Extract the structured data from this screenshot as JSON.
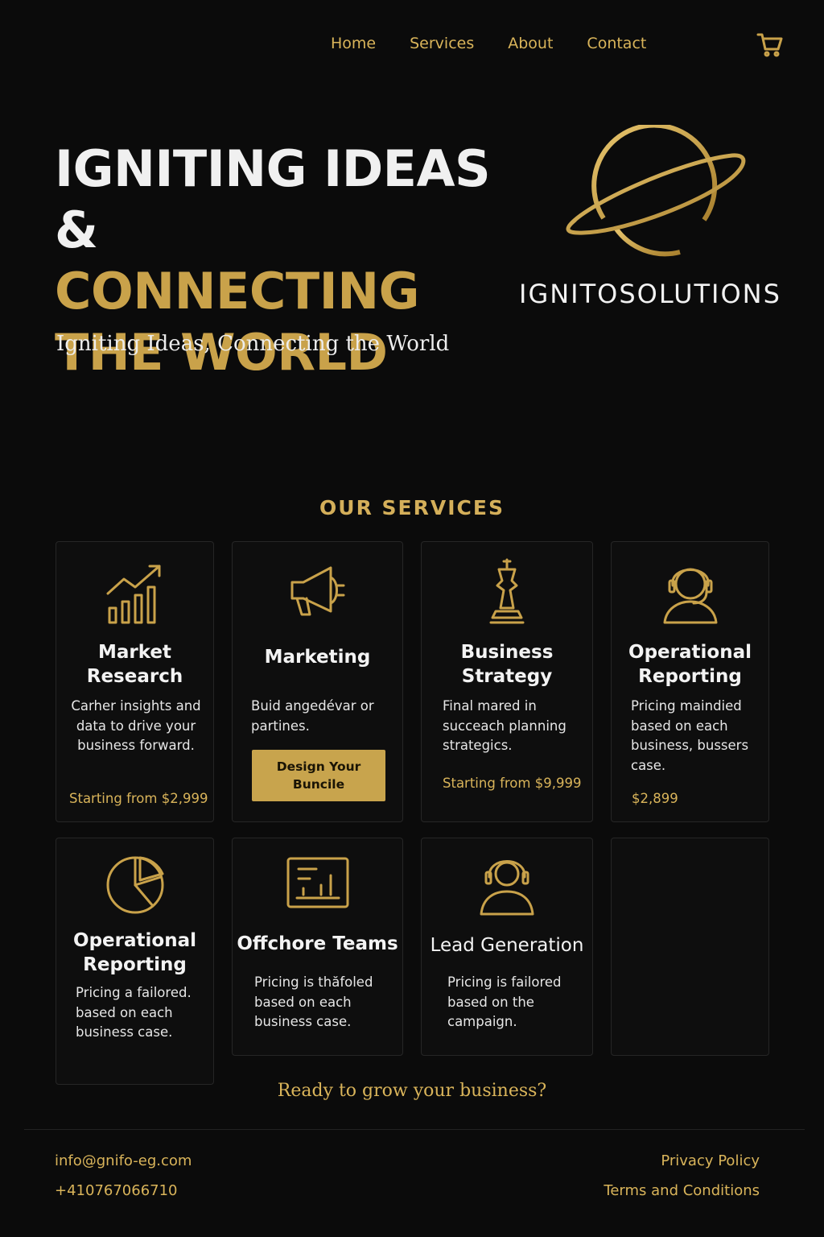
{
  "nav": {
    "items": [
      {
        "label": "Home"
      },
      {
        "label": "Services"
      },
      {
        "label": "About"
      },
      {
        "label": "Contact"
      }
    ],
    "cart_icon": "cart-icon"
  },
  "hero": {
    "title_line1": "IGNITING IDEAS &",
    "title_line2": "CONNECTING",
    "title_line3": "THE WORLD",
    "subtitle": "Igniting Ideas, Connecting the World",
    "brand_name": "IGNITOSOLUTIONS",
    "logo_icon": "planet-ring-icon"
  },
  "services": {
    "title": "OUR SERVICES",
    "cards": [
      {
        "icon": "bar-chart-growth-icon",
        "title_line1": "Market",
        "title_line2": "Research",
        "description": "Carher insights and data to drive your business forward.",
        "price": "Starting from $2,999"
      },
      {
        "icon": "megaphone-icon",
        "title_line1": "Marketing",
        "title_line2": "",
        "description": "Buid angedévar or partines.",
        "button_label": "Design Your Buncile"
      },
      {
        "icon": "chess-king-icon",
        "title_line1": "Business",
        "title_line2": "Strategy",
        "description": "Final mared in succeach planning strategics.",
        "price": "Starting from $9,999"
      },
      {
        "icon": "support-agent-icon",
        "title_line1": "Operational",
        "title_line2": "Reporting",
        "description": "Pricing maindied based on each business, bussers case.",
        "price": "$2,899"
      },
      {
        "icon": "pie-chart-icon",
        "title_line1": "Operational",
        "title_line2": "Reporting",
        "description": "Pricing a failored. based on each business case."
      },
      {
        "icon": "report-chart-icon",
        "title_line1": "Offchore Teams",
        "title_line2": "",
        "description": "Pricing is thăfoled based on each business case."
      },
      {
        "icon": "headset-user-icon",
        "title_line1": "Lead Generation",
        "title_line2": "",
        "description": "Pricing is failored based on the campaign."
      }
    ]
  },
  "cta_text": "Ready to grow your business?",
  "footer": {
    "email": "info@gnifo-eg.com",
    "phone": "+410767066710",
    "privacy": "Privacy Policy",
    "terms": "Terms and Conditions"
  },
  "colors": {
    "background": "#0b0b0b",
    "gold": "#c9a24a",
    "gold_light": "#d9b45a",
    "text": "#f0f0f0"
  }
}
